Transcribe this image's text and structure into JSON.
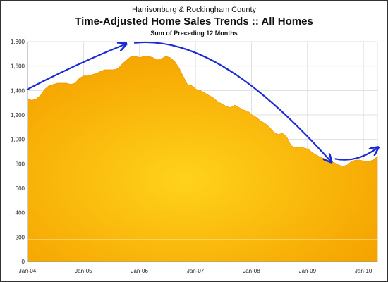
{
  "chart_data": {
    "type": "area",
    "title_line1": "Harrisonburg & Rockingham County",
    "title": "Time-Adjusted Home Sales Trends  ::  All Homes",
    "subtitle": "Sum of Preceding 12 Months",
    "xlabel": "",
    "ylabel": "",
    "ylim": [
      0,
      1800
    ],
    "yticks": [
      0,
      200,
      400,
      600,
      800,
      "1,000",
      "1,200",
      "1,400",
      "1,600",
      "1,800"
    ],
    "xtick_labels": [
      "Jan-04",
      "Jan-05",
      "Jan-06",
      "Jan-07",
      "Jan-08",
      "Jan-09",
      "Jan-10"
    ],
    "grid": true,
    "fill_colors": {
      "outer": "#f5a300",
      "inner": "#ffd21a"
    },
    "annotation_color": "#1a2bd6",
    "series": [
      {
        "x_start": "Jan-04",
        "x_step": "1 month",
        "values": [
          1330,
          1320,
          1330,
          1360,
          1410,
          1440,
          1450,
          1460,
          1460,
          1460,
          1450,
          1460,
          1500,
          1520,
          1520,
          1530,
          1540,
          1560,
          1570,
          1570,
          1570,
          1580,
          1620,
          1650,
          1680,
          1680,
          1670,
          1680,
          1680,
          1670,
          1650,
          1660,
          1680,
          1670,
          1640,
          1590,
          1520,
          1450,
          1440,
          1410,
          1400,
          1380,
          1360,
          1340,
          1310,
          1290,
          1270,
          1260,
          1280,
          1260,
          1240,
          1230,
          1200,
          1180,
          1150,
          1130,
          1100,
          1060,
          1040,
          1050,
          1020,
          950,
          930,
          940,
          930,
          920,
          890,
          870,
          850,
          840,
          820,
          810,
          790,
          780,
          790,
          820,
          830,
          830,
          820,
          820,
          830,
          860
        ]
      }
    ],
    "annotations": [
      {
        "type": "arrow",
        "from": [
          "Jan-04",
          1410
        ],
        "to": [
          "Oct-05",
          1780
        ],
        "shape": "straight"
      },
      {
        "type": "arrow",
        "from": [
          "Dec-05",
          1790
        ],
        "to": [
          "Jun-09",
          820
        ],
        "shape": "curve"
      },
      {
        "type": "arrow",
        "from": [
          "Jul-09",
          840
        ],
        "to": [
          "Apr-10",
          930
        ],
        "shape": "curve"
      }
    ]
  }
}
